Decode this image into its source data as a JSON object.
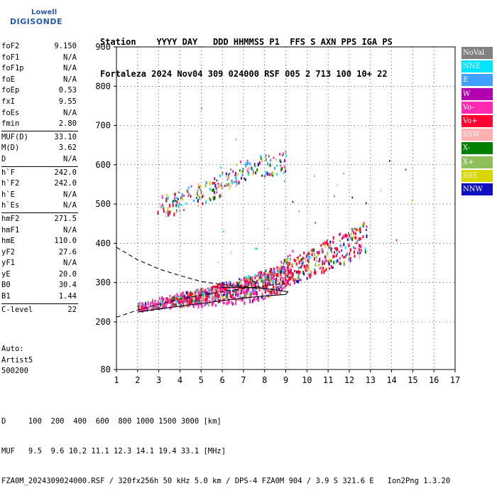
{
  "logo": {
    "line1": "Lowell",
    "line2": "DIGISONDE"
  },
  "header": {
    "row1": "Station    YYYY DAY   DDD HHMMSS P1  FFS S AXN PPS IGA PS",
    "row2": "Fortaleza 2024 Nov04 309 024000 RSF 005 2 713 100 10+ 22"
  },
  "params": {
    "group1": [
      {
        "k": "foF2",
        "v": "9.150"
      },
      {
        "k": "foF1",
        "v": "N/A"
      },
      {
        "k": "foF1p",
        "v": "N/A"
      },
      {
        "k": "foE",
        "v": "N/A"
      },
      {
        "k": "foEp",
        "v": "0.53"
      },
      {
        "k": "fxI",
        "v": "9.55"
      },
      {
        "k": "foEs",
        "v": "N/A"
      },
      {
        "k": "fmin",
        "v": "2.80"
      }
    ],
    "group2": [
      {
        "k": "MUF(D)",
        "v": "33.10"
      },
      {
        "k": "M(D)",
        "v": "3.62"
      },
      {
        "k": "D",
        "v": "N/A"
      }
    ],
    "group3": [
      {
        "k": "h`F",
        "v": "242.0"
      },
      {
        "k": "h`F2",
        "v": "242.0"
      },
      {
        "k": "h`E",
        "v": "N/A"
      },
      {
        "k": "h`Es",
        "v": "N/A"
      }
    ],
    "group4": [
      {
        "k": "hmF2",
        "v": "271.5"
      },
      {
        "k": "hmF1",
        "v": "N/A"
      },
      {
        "k": "hmE",
        "v": "110.0"
      },
      {
        "k": "yF2",
        "v": "27.6"
      },
      {
        "k": "yF1",
        "v": "N/A"
      },
      {
        "k": "yE",
        "v": "20.0"
      },
      {
        "k": "B0",
        "v": "30.4"
      },
      {
        "k": "B1",
        "v": "1.44"
      }
    ],
    "group5": [
      {
        "k": "C-level",
        "v": "22"
      }
    ]
  },
  "auto": {
    "l1": "Auto:",
    "l2": "Artist5",
    "l3": "500200"
  },
  "legend": [
    {
      "label": "NoVal",
      "color": "#808080"
    },
    {
      "label": "NNE",
      "color": "#00e5ff"
    },
    {
      "label": "E",
      "color": "#3fa0ff"
    },
    {
      "label": "W",
      "color": "#b000b0"
    },
    {
      "label": "Vo-",
      "color": "#ff2ab0"
    },
    {
      "label": "Vo+",
      "color": "#ff0030"
    },
    {
      "label": "SSW",
      "color": "#ffb0b0"
    },
    {
      "label": "X-",
      "color": "#008000"
    },
    {
      "label": "X+",
      "color": "#8fbf5a"
    },
    {
      "label": "SSE",
      "color": "#d8d800"
    },
    {
      "label": "NNW",
      "color": "#1010c0"
    }
  ],
  "footer": {
    "d_row": "D     100  200  400  600  800 1000 1500 3000 [km]",
    "muf_row": "MUF   9.5  9.6 10.2 11.1 12.3 14.1 19.4 33.1 [MHz]",
    "info_row": "FZA0M_2024309024000.RSF / 320fx256h 50 kHz 5.0 km / DPS-4 FZA0M 904 / 3.9 S 321.6 E   Ion2Png 1.3.20"
  },
  "chart_data": {
    "type": "scatter",
    "xlim": [
      1,
      17
    ],
    "ylim": [
      80,
      900
    ],
    "x_ticks": [
      1,
      2,
      3,
      4,
      5,
      6,
      7,
      8,
      9,
      10,
      11,
      12,
      13,
      14,
      15,
      16,
      17
    ],
    "y_ticks": [
      80,
      200,
      300,
      400,
      500,
      600,
      700,
      800,
      900
    ],
    "y_tick_labels": [
      "80",
      "200",
      "300",
      "400",
      "500",
      "600",
      "700",
      "800",
      "900"
    ],
    "grid": true,
    "traces": [
      {
        "name": "O-trace F2",
        "points": [
          [
            2.0,
            240
          ],
          [
            3,
            250
          ],
          [
            4,
            258
          ],
          [
            5,
            265
          ],
          [
            6,
            272
          ],
          [
            7,
            282
          ],
          [
            8,
            295
          ],
          [
            8.6,
            310
          ],
          [
            9,
            330
          ],
          [
            9.3,
            345
          ]
        ]
      },
      {
        "name": "X-trace F2",
        "points": [
          [
            3.5,
            255
          ],
          [
            5,
            272
          ],
          [
            7,
            292
          ],
          [
            9,
            320
          ],
          [
            10,
            350
          ],
          [
            11,
            375
          ],
          [
            12,
            400
          ],
          [
            12.8,
            420
          ]
        ]
      },
      {
        "name": "multihop",
        "points": [
          [
            2.9,
            490
          ],
          [
            4,
            510
          ],
          [
            5,
            530
          ],
          [
            6,
            555
          ],
          [
            7,
            590
          ],
          [
            8,
            600
          ],
          [
            9,
            610
          ]
        ]
      }
    ],
    "profile_curves": [
      {
        "style": "dashed",
        "points": [
          [
            1.0,
            212
          ],
          [
            2,
            230
          ],
          [
            3,
            245
          ],
          [
            4,
            258
          ],
          [
            5,
            268
          ],
          [
            6,
            277
          ],
          [
            7,
            285
          ],
          [
            8,
            292
          ],
          [
            9,
            298
          ]
        ]
      },
      {
        "style": "dashed",
        "points": [
          [
            1.0,
            390
          ],
          [
            2,
            358
          ],
          [
            3,
            335
          ],
          [
            4,
            318
          ],
          [
            5,
            303
          ],
          [
            6,
            295
          ],
          [
            7,
            290
          ],
          [
            8,
            286
          ]
        ]
      },
      {
        "style": "solid",
        "points": [
          [
            2.0,
            225
          ],
          [
            3,
            233
          ],
          [
            4,
            240
          ],
          [
            5,
            247
          ],
          [
            6,
            254
          ],
          [
            7,
            261
          ],
          [
            8,
            266
          ],
          [
            9,
            270
          ],
          [
            9.1,
            277
          ],
          [
            8,
            285
          ],
          [
            7,
            288
          ],
          [
            6,
            288
          ]
        ]
      }
    ]
  }
}
